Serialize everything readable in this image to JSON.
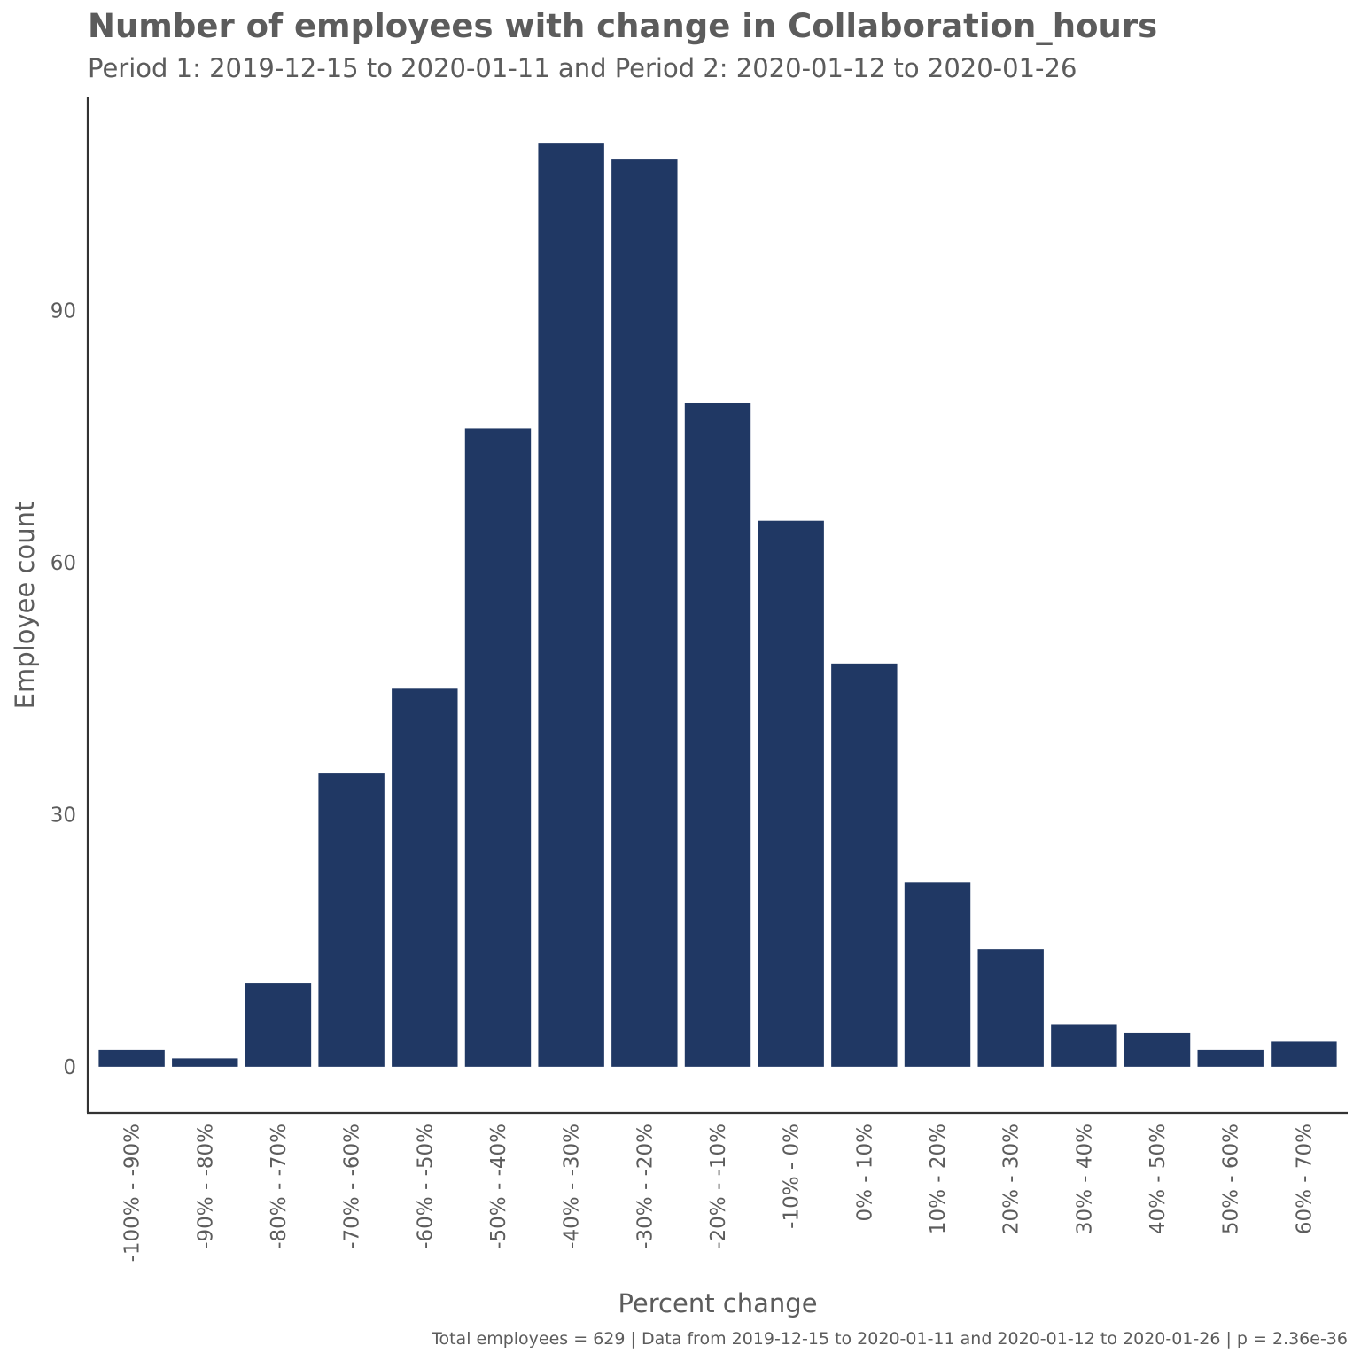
{
  "colors": {
    "bar": "#203864",
    "text": "#5c5c5c",
    "axis": "#333333",
    "background": "#ffffff"
  },
  "chart_data": {
    "type": "bar",
    "title": "Number of employees with change in Collaboration_hours",
    "subtitle": "Period 1: 2019-12-15 to 2020-01-11 and Period 2: 2020-01-12 to 2020-01-26",
    "xlabel": "Percent change",
    "ylabel": "Employee count",
    "caption": "Total employees = 629 | Data from 2019-12-15 to 2020-01-11 and 2020-01-12 to 2020-01-26 | p = 2.36e-36",
    "categories": [
      "-100% - -90%",
      "-90% - -80%",
      "-80% - -70%",
      "-70% - -60%",
      "-60% - -50%",
      "-50% - -40%",
      "-40% - -30%",
      "-30% - -20%",
      "-20% - -10%",
      "-10% - 0%",
      "0% - 10%",
      "10% - 20%",
      "20% - 30%",
      "30% - 40%",
      "40% - 50%",
      "50% - 60%",
      "60% - 70%"
    ],
    "values": [
      2,
      1,
      10,
      35,
      45,
      76,
      110,
      108,
      79,
      65,
      48,
      22,
      14,
      5,
      4,
      2,
      3
    ],
    "yticks": [
      0,
      30,
      60,
      90
    ],
    "ylim": [
      -5.5,
      115.5
    ],
    "grid": false,
    "legend": "none"
  }
}
